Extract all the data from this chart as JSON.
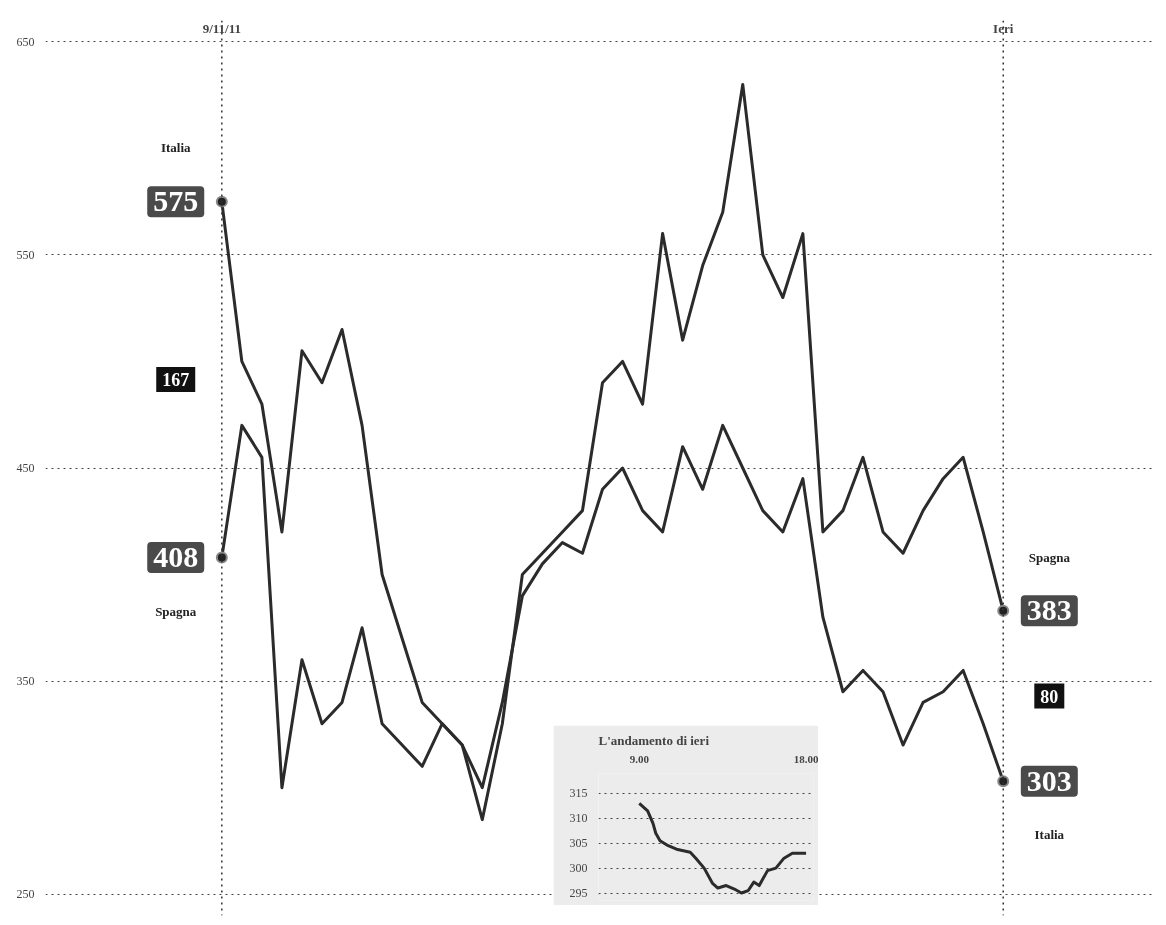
{
  "chart_data": [
    {
      "type": "line",
      "categories": [
        null,
        null,
        null,
        null,
        null,
        null,
        null,
        null,
        null,
        null,
        null,
        null,
        null,
        null,
        null,
        null,
        null,
        null,
        null,
        null,
        null,
        null,
        null,
        null,
        null,
        null,
        null,
        null,
        null,
        null,
        null,
        null,
        null,
        null,
        null,
        null,
        null,
        null,
        null,
        null
      ],
      "series": [
        {
          "name": "Italia",
          "color": "#2b2b2b",
          "values": [
            575,
            500,
            480,
            420,
            505,
            490,
            515,
            470,
            400,
            370,
            340,
            330,
            320,
            300,
            340,
            390,
            405,
            415,
            410,
            440,
            450,
            430,
            420,
            460,
            440,
            470,
            450,
            430,
            420,
            445,
            380,
            345,
            355,
            345,
            320,
            340,
            345,
            355,
            330,
            303
          ],
          "value_labels": [
            "575",
            null,
            null,
            null,
            null,
            null,
            null,
            null,
            null,
            null,
            null,
            null,
            null,
            null,
            null,
            null,
            null,
            null,
            null,
            null,
            null,
            null,
            null,
            null,
            null,
            null,
            null,
            null,
            null,
            null,
            null,
            null,
            null,
            null,
            null,
            null,
            null,
            null,
            null,
            "303"
          ]
        },
        {
          "name": "Spagna",
          "color": "#2b2b2b",
          "values": [
            408,
            470,
            455,
            300,
            360,
            330,
            340,
            375,
            330,
            320,
            310,
            330,
            320,
            285,
            330,
            400,
            410,
            420,
            430,
            490,
            500,
            480,
            560,
            510,
            545,
            570,
            630,
            550,
            530,
            560,
            420,
            430,
            455,
            420,
            410,
            430,
            445,
            455,
            420,
            383
          ],
          "value_labels": [
            "408",
            null,
            null,
            null,
            null,
            null,
            null,
            null,
            null,
            null,
            null,
            null,
            null,
            null,
            null,
            null,
            null,
            null,
            null,
            null,
            null,
            null,
            null,
            null,
            null,
            null,
            null,
            null,
            null,
            null,
            null,
            null,
            null,
            null,
            null,
            null,
            null,
            null,
            null,
            "383"
          ]
        }
      ],
      "ylim": [
        240,
        660
      ],
      "yticks": [
        250,
        350,
        450,
        550,
        650
      ],
      "grid": "y",
      "tick_labels": "y",
      "line_style": "solid",
      "annotations": [
        "9/11/11",
        "Ieri",
        "167",
        "80"
      ]
    },
    {
      "type": "line",
      "title": "L'andamento di ieri",
      "x": [
        9,
        9.45,
        9.74,
        9.89,
        10.12,
        10.56,
        11.01,
        11.75,
        12.05,
        12.5,
        12.94,
        13.24,
        13.69,
        14.13,
        14.51,
        14.88,
        15.18,
        15.47,
        15.92,
        16.37,
        16.81,
        17.26,
        17.56,
        18
      ],
      "series": [
        {
          "color": "#2b2b2b",
          "values": [
            313,
            311.5,
            309,
            307,
            305.5,
            304.5,
            303.8,
            303.2,
            302,
            300,
            297,
            296,
            296.5,
            295.8,
            295,
            295.5,
            297.2,
            296.5,
            299.5,
            300,
            302,
            303,
            303,
            303
          ]
        }
      ],
      "xlim": [
        6.8,
        18.4
      ],
      "xticks": [
        {
          "value": 9,
          "label": "9.00"
        },
        {
          "value": 18,
          "label": "18.00"
        }
      ],
      "ylim": [
        293.5,
        319
      ],
      "yticks": [
        295,
        300,
        305,
        310,
        315
      ],
      "grid": "y"
    }
  ]
}
